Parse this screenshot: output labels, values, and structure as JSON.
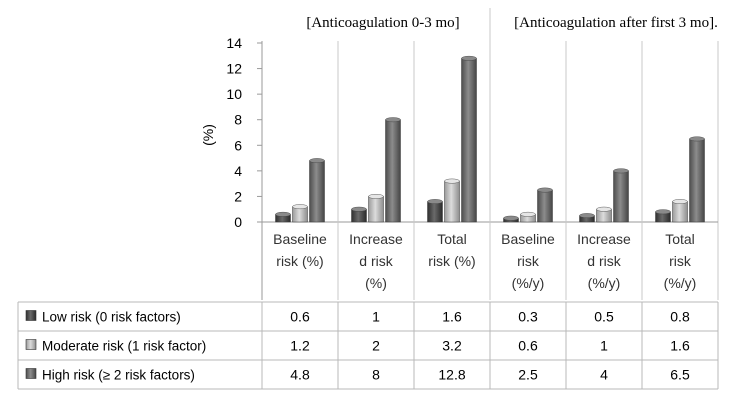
{
  "chart_data": {
    "type": "bar",
    "header_groups": [
      "[Anticoagulation 0-3 mo]",
      "[Anticoagulation after first 3 mo]."
    ],
    "categories": [
      [
        "Baseline",
        "risk (%)"
      ],
      [
        "Increase",
        "d risk",
        "(%)"
      ],
      [
        "Total",
        "risk (%)"
      ],
      [
        "Baseline",
        "risk",
        "(%/y)"
      ],
      [
        "Increase",
        "d risk",
        "(%/y)"
      ],
      [
        "Total",
        "risk",
        "(%/y)"
      ]
    ],
    "series": [
      {
        "name": "Low risk (0 risk factors)",
        "values": [
          0.6,
          1,
          1.6,
          0.3,
          0.5,
          0.8
        ],
        "labels": [
          "0.6",
          "1",
          "1.6",
          "0.3",
          "0.5",
          "0.8"
        ]
      },
      {
        "name": "Moderate risk (1 risk factor)",
        "values": [
          1.2,
          2,
          3.2,
          0.6,
          1,
          1.6
        ],
        "labels": [
          "1.2",
          "2",
          "3.2",
          "0.6",
          "1",
          "1.6"
        ]
      },
      {
        "name": "High risk (≥ 2 risk factors)",
        "values": [
          4.8,
          8,
          12.8,
          2.5,
          4,
          6.5
        ],
        "labels": [
          "4.8",
          "8",
          "12.8",
          "2.5",
          "4",
          "6.5"
        ]
      }
    ],
    "ylabel": "(%)",
    "ylim": [
      0,
      14
    ],
    "yticks": [
      0,
      2,
      4,
      6,
      8,
      10,
      12,
      14
    ],
    "grid": false,
    "legend": "data-table rows below chart",
    "colors": [
      "#4a4a4a",
      "#b8b8b8",
      "#6e6e6e"
    ]
  }
}
